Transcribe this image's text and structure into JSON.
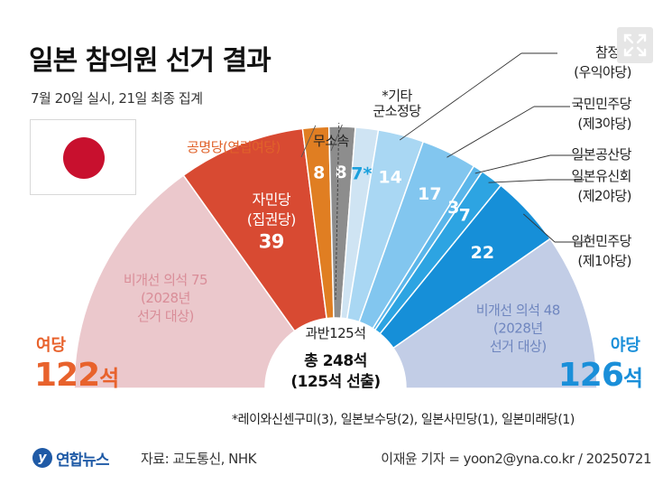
{
  "header": {
    "title": "일본 참의원 선거 결과",
    "subtitle": "7월 20일 실시, 21일 최종 집계"
  },
  "flag": {
    "name": "japan-flag-icon"
  },
  "chart_data": {
    "type": "semicircle-parliament",
    "title": "일본 참의원 선거 결과",
    "total_seats": 248,
    "center": {
      "majority_label": "과반125석",
      "total_line1": "총 248석",
      "total_line2": "(125석 선출)"
    },
    "segments": [
      {
        "id": "ruling-non-contested",
        "label": "비개선 의석 75\n(2028년\n선거 대상)",
        "value": 75,
        "color": "#ebc8cc",
        "text_color": "#d98d98"
      },
      {
        "id": "ldp",
        "label": "자민당\n(집권당)\n39",
        "value": 39,
        "color": "#d84a32",
        "text_color": "#ffffff"
      },
      {
        "id": "komeito",
        "label": "8",
        "value": 8,
        "color": "#e07e22",
        "text_color": "#ffffff",
        "callout": "공명당(연립여당)",
        "callout_color": "#e0622a"
      },
      {
        "id": "independent",
        "label": "8",
        "value": 8,
        "color": "#8d8d8d",
        "text_color": "#ffffff",
        "callout": "무소속",
        "callout_color": "#222222"
      },
      {
        "id": "other",
        "label": "7*",
        "value": 7,
        "color": "#cfe4f3",
        "text_color": "#1aa0dd",
        "callout": "*기타\n군소정당",
        "callout_color": "#222222"
      },
      {
        "id": "sanseito",
        "label": "14",
        "value": 14,
        "color": "#a9d7f3",
        "text_color": "#ffffff",
        "callout": "참정당\n(우익야당)",
        "callout_color": "#222222"
      },
      {
        "id": "dpfp",
        "label": "17",
        "value": 17,
        "color": "#82c6ef",
        "text_color": "#ffffff",
        "callout": "국민민주당\n(제3야당)",
        "callout_color": "#222222"
      },
      {
        "id": "jcp",
        "label": "3",
        "value": 3,
        "color": "#5ab6ea",
        "text_color": "#ffffff",
        "callout": "일본공산당",
        "callout_color": "#222222"
      },
      {
        "id": "ishin",
        "label": "7",
        "value": 7,
        "color": "#2da4e2",
        "text_color": "#ffffff",
        "callout": "일본유신회\n(제2야당)",
        "callout_color": "#222222"
      },
      {
        "id": "cdp",
        "label": "22",
        "value": 22,
        "color": "#168fd8",
        "text_color": "#ffffff",
        "callout": "입헌민주당\n(제1야당)",
        "callout_color": "#222222"
      },
      {
        "id": "opposition-non-contested",
        "label": "비개선 의석 48\n(2028년\n선거 대상)",
        "value": 48,
        "color": "#c2cde6",
        "text_color": "#6f86bf"
      }
    ],
    "blocs": [
      {
        "id": "ruling-bloc",
        "label": "여당",
        "seats": "122",
        "unit": "석",
        "color": "#e8622c"
      },
      {
        "id": "opposition-bloc",
        "label": "야당",
        "seats": "126",
        "unit": "석",
        "color": "#1a8fd9"
      }
    ]
  },
  "footnote": "*레이와신센구미(3), 일본보수당(2), 일본사민당(1), 일본미래당(1)",
  "footer": {
    "logo_text": "연합뉴스",
    "logo_mark": "y",
    "source": "자료: 교도통신, NHK",
    "credit": "이재윤 기자 = yoon2@yna.co.kr / 20250721"
  }
}
